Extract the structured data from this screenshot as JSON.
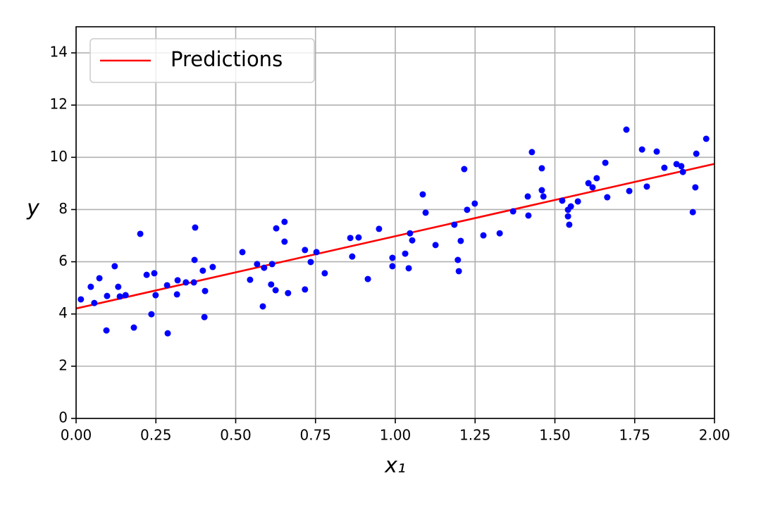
{
  "chart_data": {
    "type": "scatter",
    "x_label": "x₁",
    "y_label": "y",
    "xlim": [
      0,
      2
    ],
    "ylim": [
      0,
      15
    ],
    "xticks": [
      {
        "value": 0,
        "label": "0.00"
      },
      {
        "value": 0.25,
        "label": "0.25"
      },
      {
        "value": 0.5,
        "label": "0.50"
      },
      {
        "value": 0.75,
        "label": "0.75"
      },
      {
        "value": 1,
        "label": "1.00"
      },
      {
        "value": 1.25,
        "label": "1.25"
      },
      {
        "value": 1.5,
        "label": "1.50"
      },
      {
        "value": 1.75,
        "label": "1.75"
      },
      {
        "value": 2,
        "label": "2.00"
      }
    ],
    "yticks": [
      0,
      2,
      4,
      6,
      8,
      10,
      12,
      14
    ],
    "grid": true,
    "legend": "upper left",
    "series": [
      {
        "name": "Predictions",
        "type": "line",
        "color": "#ff0000",
        "x": [
          0,
          2
        ],
        "values": [
          4.21,
          9.75
        ]
      },
      {
        "type": "scatter",
        "color": "#0000ff",
        "x": [
          0.015,
          0.046,
          0.057,
          0.073,
          0.095,
          0.097,
          0.121,
          0.132,
          0.137,
          0.155,
          0.181,
          0.201,
          0.221,
          0.236,
          0.245,
          0.249,
          0.285,
          0.287,
          0.316,
          0.318,
          0.344,
          0.369,
          0.373,
          0.371,
          0.397,
          0.402,
          0.404,
          0.428,
          0.521,
          0.545,
          0.567,
          0.585,
          0.589,
          0.611,
          0.614,
          0.625,
          0.627,
          0.653,
          0.653,
          0.664,
          0.717,
          0.717,
          0.735,
          0.753,
          0.779,
          0.859,
          0.865,
          0.885,
          0.914,
          0.949,
          0.991,
          0.991,
          1.031,
          1.042,
          1.046,
          1.053,
          1.086,
          1.095,
          1.126,
          1.185,
          1.196,
          1.199,
          1.205,
          1.216,
          1.225,
          1.249,
          1.276,
          1.327,
          1.369,
          1.415,
          1.417,
          1.428,
          1.459,
          1.459,
          1.464,
          1.523,
          1.541,
          1.541,
          1.545,
          1.55,
          1.572,
          1.605,
          1.618,
          1.631,
          1.658,
          1.664,
          1.724,
          1.733,
          1.773,
          1.788,
          1.819,
          1.843,
          1.881,
          1.896,
          1.901,
          1.932,
          1.94,
          1.943,
          1.974
        ],
        "values": [
          4.56,
          5.04,
          4.42,
          5.37,
          3.37,
          4.69,
          5.83,
          5.04,
          4.67,
          4.72,
          3.48,
          7.07,
          5.5,
          3.99,
          5.56,
          4.72,
          5.1,
          3.26,
          4.75,
          5.29,
          5.21,
          5.21,
          7.31,
          6.07,
          5.66,
          3.88,
          4.88,
          5.8,
          6.37,
          5.31,
          5.91,
          4.29,
          5.77,
          5.13,
          5.91,
          4.91,
          7.28,
          7.53,
          6.77,
          4.8,
          6.45,
          4.94,
          5.99,
          6.37,
          5.56,
          6.91,
          6.2,
          6.93,
          5.34,
          7.26,
          6.15,
          5.83,
          6.31,
          5.75,
          7.09,
          6.82,
          8.58,
          7.88,
          6.64,
          7.42,
          6.07,
          5.64,
          6.8,
          9.55,
          7.99,
          8.23,
          7.01,
          7.09,
          7.93,
          8.5,
          7.77,
          10.2,
          8.74,
          9.58,
          8.5,
          8.34,
          7.99,
          7.74,
          7.42,
          8.12,
          8.31,
          9.01,
          8.85,
          9.2,
          9.79,
          8.47,
          11.06,
          8.71,
          10.3,
          8.88,
          10.22,
          9.6,
          9.74,
          9.66,
          9.44,
          7.9,
          8.85,
          10.14,
          10.71
        ]
      }
    ]
  }
}
